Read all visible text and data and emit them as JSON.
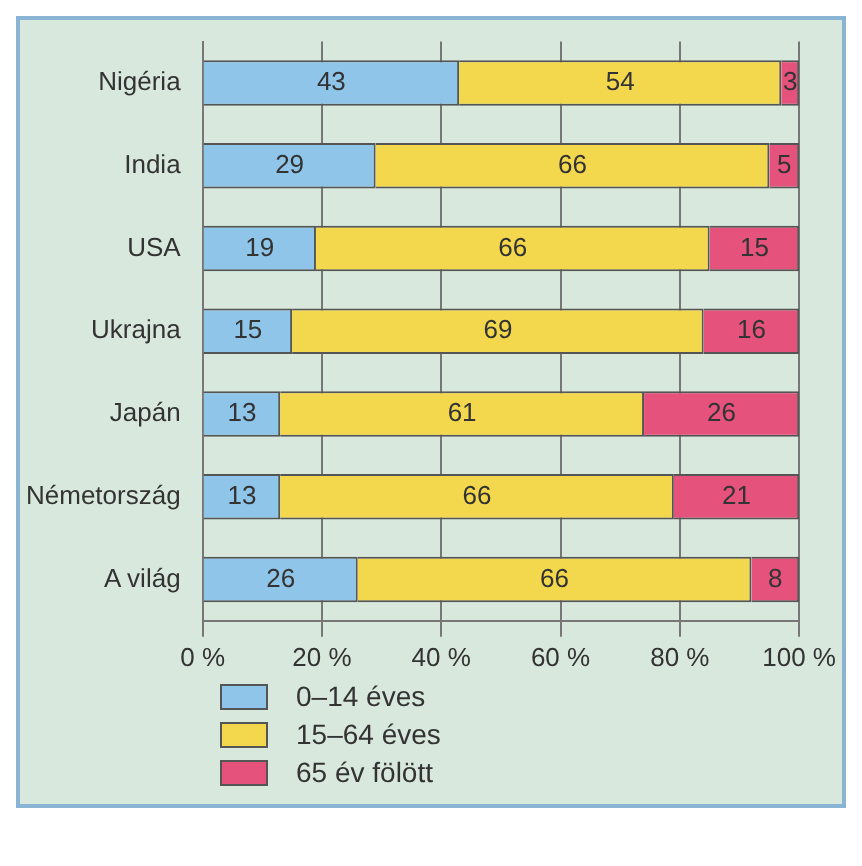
{
  "chart_data": {
    "type": "bar",
    "orientation": "horizontal",
    "stacked": true,
    "categories": [
      "Nigéria",
      "India",
      "USA",
      "Ukrajna",
      "Japán",
      "Németország",
      "A világ"
    ],
    "series": [
      {
        "name": "0–14 éves",
        "color": "#8ec5e8",
        "values": [
          43,
          29,
          19,
          15,
          13,
          13,
          26
        ]
      },
      {
        "name": "15–64 éves",
        "color": "#f3d84e",
        "values": [
          54,
          66,
          66,
          69,
          61,
          66,
          66
        ]
      },
      {
        "name": "65 év fölött",
        "color": "#e5537c",
        "values": [
          3,
          5,
          15,
          16,
          26,
          21,
          8
        ]
      }
    ],
    "xlim": [
      0,
      100
    ],
    "xticks": [
      {
        "value": 0,
        "label": "0 %"
      },
      {
        "value": 20,
        "label": "20 %"
      },
      {
        "value": 40,
        "label": "40 %"
      },
      {
        "value": 60,
        "label": "60 %"
      },
      {
        "value": 80,
        "label": "80 %"
      },
      {
        "value": 100,
        "label": "100 %"
      }
    ],
    "grid": "x",
    "legend": "bottom left",
    "data_labels": true
  }
}
